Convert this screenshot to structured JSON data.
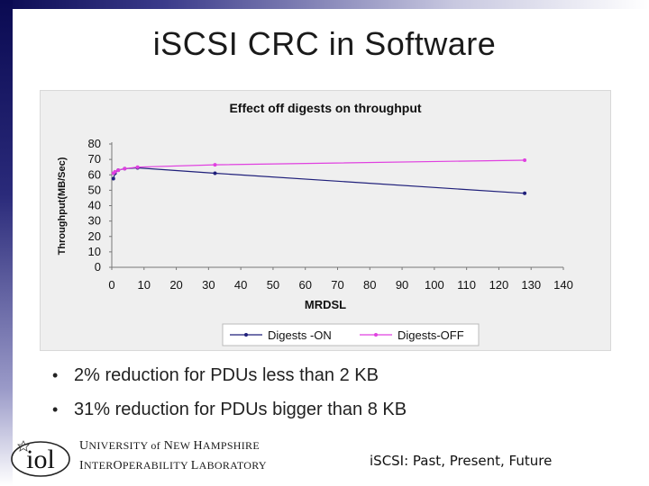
{
  "slide": {
    "title": "iSCSI CRC in Software",
    "bullets": [
      "2% reduction for PDUs less than 2 KB",
      "31% reduction for PDUs bigger than 8 KB"
    ],
    "footer": {
      "logo_text": "iol",
      "lab_line1": [
        "U",
        "NIVERSITY ",
        "of",
        " N",
        "EW ",
        "H",
        "AMPSHIRE"
      ],
      "lab_line2": [
        "I",
        "NTER",
        "O",
        "PERABILITY ",
        "L",
        "ABORATORY"
      ],
      "presentation": "iSCSI: Past, Present, Future"
    }
  },
  "chart_data": {
    "type": "line",
    "title": "Effect off digests on throughput",
    "xlabel": "MRDSL",
    "ylabel": "Throughput(MB/Sec)",
    "xlim": [
      0,
      140
    ],
    "ylim": [
      0,
      80
    ],
    "xticks": [
      0,
      10,
      20,
      30,
      40,
      50,
      60,
      70,
      80,
      90,
      100,
      110,
      120,
      130,
      140
    ],
    "yticks": [
      0,
      10,
      20,
      30,
      40,
      50,
      60,
      70,
      80
    ],
    "legend_position": "bottom",
    "series": [
      {
        "name": "Digests -ON",
        "color": "#1f1f7a",
        "x": [
          0.5,
          1,
          2,
          4,
          8,
          32,
          128
        ],
        "y": [
          57.5,
          61,
          63,
          64,
          64.5,
          61,
          48
        ]
      },
      {
        "name": "Digests-OFF",
        "color": "#e040e0",
        "x": [
          0.5,
          1,
          2,
          4,
          8,
          32,
          128
        ],
        "y": [
          61,
          62,
          63,
          64,
          65,
          66.5,
          69.5
        ]
      }
    ]
  }
}
